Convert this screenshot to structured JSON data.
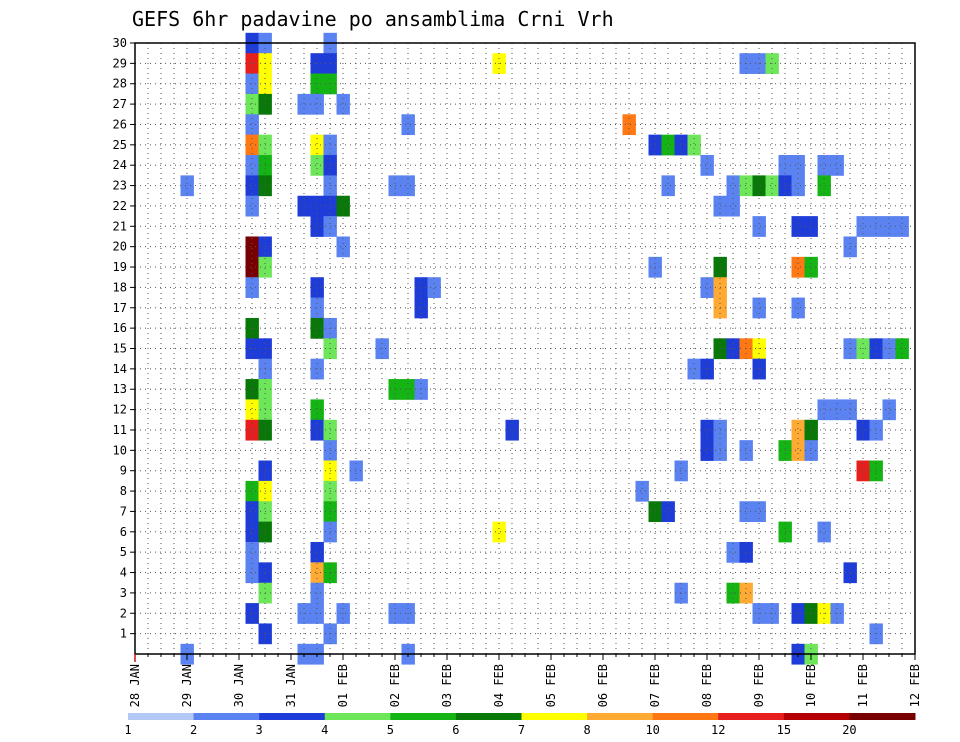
{
  "chart_data": {
    "type": "heatmap",
    "title": "GEFS 6hr padavine po ansamblima Crni Vrh",
    "x_tick_labels": [
      "28 JAN",
      "29 JAN",
      "30 JAN",
      "31 JAN",
      "01 FEB",
      "02 FEB",
      "03 FEB",
      "04 FEB",
      "05 FEB",
      "06 FEB",
      "07 FEB",
      "08 FEB",
      "09 FEB",
      "10 FEB",
      "11 FEB",
      "12 FEB"
    ],
    "y_tick_labels": [
      "1",
      "2",
      "3",
      "4",
      "5",
      "6",
      "7",
      "8",
      "9",
      "10",
      "11",
      "12",
      "13",
      "14",
      "15",
      "16",
      "17",
      "18",
      "19",
      "20",
      "21",
      "22",
      "23",
      "24",
      "25",
      "26",
      "27",
      "28",
      "29",
      "30"
    ],
    "x_range_days": [
      0,
      15
    ],
    "y_range": [
      0,
      30
    ],
    "grid": true,
    "legend": {
      "position": "bottom",
      "labels": [
        "1",
        "2",
        "3",
        "4",
        "5",
        "6",
        "7",
        "8",
        "10",
        "12",
        "15",
        "20"
      ],
      "colors": [
        "#b4c8f5",
        "#5a82f0",
        "#1e3cd8",
        "#6ee65a",
        "#14b414",
        "#087808",
        "#ffff00",
        "#ffaa32",
        "#ff7814",
        "#e61e1e",
        "#b40000",
        "#780000"
      ]
    },
    "cells": [
      [
        2.25,
        30,
        2
      ],
      [
        2.5,
        30,
        1
      ],
      [
        3.75,
        30,
        1
      ],
      [
        2.25,
        29,
        9
      ],
      [
        2.5,
        29,
        6
      ],
      [
        3.5,
        29,
        2
      ],
      [
        3.75,
        29,
        2
      ],
      [
        7,
        29,
        6
      ],
      [
        11.75,
        29,
        1
      ],
      [
        12,
        29,
        1
      ],
      [
        12.25,
        29,
        3
      ],
      [
        2.25,
        28,
        1
      ],
      [
        2.5,
        28,
        6
      ],
      [
        3.5,
        28,
        4
      ],
      [
        3.75,
        28,
        4
      ],
      [
        2.25,
        27,
        3
      ],
      [
        2.5,
        27,
        5
      ],
      [
        3.25,
        27,
        1
      ],
      [
        3.5,
        27,
        1
      ],
      [
        4,
        27,
        1
      ],
      [
        2.25,
        26,
        1
      ],
      [
        5.25,
        26,
        1
      ],
      [
        9.5,
        26,
        8
      ],
      [
        2.25,
        25,
        8
      ],
      [
        2.5,
        25,
        3
      ],
      [
        3.5,
        25,
        6
      ],
      [
        3.75,
        25,
        1
      ],
      [
        10,
        25,
        2
      ],
      [
        10.25,
        25,
        4
      ],
      [
        10.5,
        25,
        2
      ],
      [
        10.75,
        25,
        3
      ],
      [
        2.25,
        24,
        1
      ],
      [
        2.5,
        24,
        4
      ],
      [
        3.5,
        24,
        3
      ],
      [
        3.75,
        24,
        2
      ],
      [
        11,
        24,
        1
      ],
      [
        12.5,
        24,
        1
      ],
      [
        12.75,
        24,
        1
      ],
      [
        13.25,
        24,
        1
      ],
      [
        13.5,
        24,
        1
      ],
      [
        1,
        23,
        1
      ],
      [
        2.25,
        23,
        2
      ],
      [
        2.5,
        23,
        5
      ],
      [
        3.75,
        23,
        1
      ],
      [
        5,
        23,
        1
      ],
      [
        5.25,
        23,
        1
      ],
      [
        10.25,
        23,
        1
      ],
      [
        11.5,
        23,
        1
      ],
      [
        11.75,
        23,
        3
      ],
      [
        12,
        23,
        5
      ],
      [
        12.25,
        23,
        3
      ],
      [
        12.5,
        23,
        2
      ],
      [
        12.75,
        23,
        1
      ],
      [
        13.25,
        23,
        4
      ],
      [
        2.25,
        22,
        1
      ],
      [
        3.25,
        22,
        2
      ],
      [
        3.5,
        22,
        2
      ],
      [
        3.75,
        22,
        2
      ],
      [
        4,
        22,
        5
      ],
      [
        11.25,
        22,
        1
      ],
      [
        11.5,
        22,
        1
      ],
      [
        3.5,
        21,
        2
      ],
      [
        3.75,
        21,
        1
      ],
      [
        12,
        21,
        1
      ],
      [
        12.75,
        21,
        2
      ],
      [
        13,
        21,
        2
      ],
      [
        14,
        21,
        1
      ],
      [
        14.25,
        21,
        1
      ],
      [
        14.5,
        21,
        1
      ],
      [
        14.75,
        21,
        1
      ],
      [
        2.25,
        20,
        11
      ],
      [
        2.5,
        20,
        2
      ],
      [
        4,
        20,
        1
      ],
      [
        13.75,
        20,
        1
      ],
      [
        2.25,
        19,
        11
      ],
      [
        2.5,
        19,
        3
      ],
      [
        10,
        19,
        1
      ],
      [
        11.25,
        19,
        5
      ],
      [
        12.75,
        19,
        8
      ],
      [
        13,
        19,
        4
      ],
      [
        2.25,
        18,
        1
      ],
      [
        3.5,
        18,
        2
      ],
      [
        5.5,
        18,
        2
      ],
      [
        5.75,
        18,
        1
      ],
      [
        11,
        18,
        1
      ],
      [
        11.25,
        18,
        7
      ],
      [
        3.5,
        17,
        1
      ],
      [
        5.5,
        17,
        2
      ],
      [
        11.25,
        17,
        7
      ],
      [
        12,
        17,
        1
      ],
      [
        12.75,
        17,
        1
      ],
      [
        2.25,
        16,
        5
      ],
      [
        3.5,
        16,
        5
      ],
      [
        3.75,
        16,
        1
      ],
      [
        2.25,
        15,
        2
      ],
      [
        2.5,
        15,
        2
      ],
      [
        3.75,
        15,
        3
      ],
      [
        4.75,
        15,
        1
      ],
      [
        11.25,
        15,
        5
      ],
      [
        11.5,
        15,
        2
      ],
      [
        11.75,
        15,
        8
      ],
      [
        12,
        15,
        6
      ],
      [
        13.75,
        15,
        1
      ],
      [
        14,
        15,
        3
      ],
      [
        14.25,
        15,
        2
      ],
      [
        14.5,
        15,
        1
      ],
      [
        14.75,
        15,
        4
      ],
      [
        2.5,
        14,
        1
      ],
      [
        3.5,
        14,
        1
      ],
      [
        10.75,
        14,
        1
      ],
      [
        11,
        14,
        2
      ],
      [
        12,
        14,
        2
      ],
      [
        2.25,
        13,
        5
      ],
      [
        2.5,
        13,
        3
      ],
      [
        5,
        13,
        4
      ],
      [
        5.25,
        13,
        4
      ],
      [
        5.5,
        13,
        1
      ],
      [
        2.25,
        12,
        6
      ],
      [
        2.5,
        12,
        3
      ],
      [
        3.5,
        12,
        4
      ],
      [
        13.25,
        12,
        1
      ],
      [
        13.5,
        12,
        1
      ],
      [
        13.75,
        12,
        1
      ],
      [
        14.5,
        12,
        1
      ],
      [
        2.25,
        11,
        9
      ],
      [
        2.5,
        11,
        5
      ],
      [
        3.5,
        11,
        2
      ],
      [
        3.75,
        11,
        3
      ],
      [
        7.25,
        11,
        2
      ],
      [
        11,
        11,
        2
      ],
      [
        11.25,
        11,
        1
      ],
      [
        12.75,
        11,
        7
      ],
      [
        13,
        11,
        5
      ],
      [
        14,
        11,
        2
      ],
      [
        14.25,
        11,
        1
      ],
      [
        3.75,
        10,
        1
      ],
      [
        11,
        10,
        2
      ],
      [
        11.25,
        10,
        1
      ],
      [
        11.75,
        10,
        1
      ],
      [
        12.5,
        10,
        4
      ],
      [
        12.75,
        10,
        7
      ],
      [
        13,
        10,
        1
      ],
      [
        2.5,
        9,
        2
      ],
      [
        3.75,
        9,
        6
      ],
      [
        4.25,
        9,
        1
      ],
      [
        10.5,
        9,
        1
      ],
      [
        14,
        9,
        9
      ],
      [
        14.25,
        9,
        4
      ],
      [
        2.25,
        8,
        4
      ],
      [
        2.5,
        8,
        6
      ],
      [
        3.75,
        8,
        3
      ],
      [
        9.75,
        8,
        1
      ],
      [
        2.25,
        7,
        2
      ],
      [
        2.5,
        7,
        3
      ],
      [
        3.75,
        7,
        4
      ],
      [
        10,
        7,
        5
      ],
      [
        10.25,
        7,
        2
      ],
      [
        11.75,
        7,
        1
      ],
      [
        12,
        7,
        1
      ],
      [
        2.25,
        6,
        2
      ],
      [
        2.5,
        6,
        5
      ],
      [
        3.75,
        6,
        1
      ],
      [
        7,
        6,
        6
      ],
      [
        12.5,
        6,
        4
      ],
      [
        13.25,
        6,
        1
      ],
      [
        2.25,
        5,
        1
      ],
      [
        3.5,
        5,
        2
      ],
      [
        11.5,
        5,
        1
      ],
      [
        11.75,
        5,
        2
      ],
      [
        2.25,
        4,
        1
      ],
      [
        2.5,
        4,
        2
      ],
      [
        3.5,
        4,
        7
      ],
      [
        3.75,
        4,
        4
      ],
      [
        13.75,
        4,
        2
      ],
      [
        2.5,
        3,
        3
      ],
      [
        3.5,
        3,
        1
      ],
      [
        10.5,
        3,
        1
      ],
      [
        11.5,
        3,
        4
      ],
      [
        11.75,
        3,
        7
      ],
      [
        2.25,
        2,
        2
      ],
      [
        3.25,
        2,
        1
      ],
      [
        3.5,
        2,
        1
      ],
      [
        4,
        2,
        1
      ],
      [
        5,
        2,
        1
      ],
      [
        5.25,
        2,
        1
      ],
      [
        12,
        2,
        1
      ],
      [
        12.25,
        2,
        1
      ],
      [
        12.75,
        2,
        2
      ],
      [
        13,
        2,
        5
      ],
      [
        13.25,
        2,
        6
      ],
      [
        13.5,
        2,
        1
      ],
      [
        2.5,
        1,
        2
      ],
      [
        3.75,
        1,
        1
      ],
      [
        14.25,
        1,
        1
      ],
      [
        1,
        0,
        1
      ],
      [
        3.25,
        0,
        1
      ],
      [
        3.5,
        0,
        1
      ],
      [
        5.25,
        0,
        1
      ],
      [
        12.75,
        0,
        2
      ],
      [
        13,
        0,
        3
      ]
    ]
  }
}
